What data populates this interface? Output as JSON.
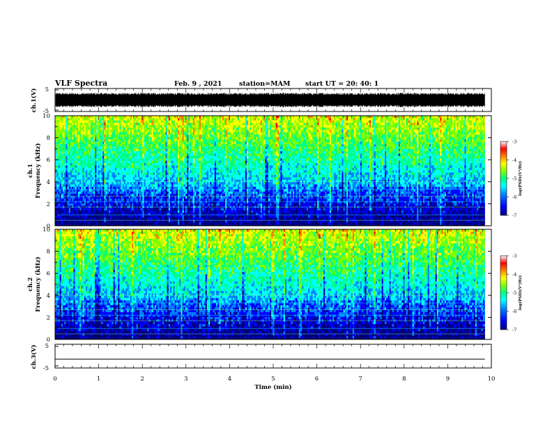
{
  "header": {
    "title": "VLF Spectra",
    "date": "Feb. 9 , 2021",
    "station": "station=MAM",
    "start": "start UT = 20: 40: 1"
  },
  "chart_data": [
    {
      "type": "line",
      "name": "ch1-waveform",
      "ylabel": "ch.1(V)",
      "ylim": [
        -5,
        5
      ],
      "ytick_labels": [
        "5",
        "-5"
      ],
      "xlim": [
        0,
        10
      ],
      "note_values": "dense oscillating waveform filling roughly -3 to 3 V across 0 to 9.85 min",
      "amplitude": 3,
      "x_end": 9.85
    },
    {
      "type": "heatmap",
      "name": "ch1-spectrogram",
      "ylabel_lines": [
        "ch.1",
        "Frequency (kHz)"
      ],
      "ylim": [
        0,
        10
      ],
      "yticks": [
        0,
        2,
        4,
        6,
        8,
        10
      ],
      "ytick_labels": [
        "0",
        "2",
        "4",
        "6",
        "8",
        "10"
      ],
      "xlim": [
        0,
        10
      ],
      "x_end": 9.85,
      "colorbar": {
        "label": "log(PSD)(V²/Hz)",
        "range": [
          -7,
          -3
        ],
        "ticks": [
          "-3",
          "-4",
          "-5",
          "-6",
          "-7"
        ]
      }
    },
    {
      "type": "heatmap",
      "name": "ch2-spectrogram",
      "ylabel_lines": [
        "ch.2",
        "Frequency (kHz)"
      ],
      "ylim": [
        0,
        10
      ],
      "yticks": [
        0,
        2,
        4,
        6,
        8,
        10
      ],
      "ytick_labels": [
        "0",
        "2",
        "4",
        "6",
        "8",
        "10"
      ],
      "xlim": [
        0,
        10
      ],
      "x_end": 9.85,
      "colorbar": {
        "label": "log(PSD)(V²/Hz)",
        "range": [
          -7,
          -3
        ],
        "ticks": [
          "-3",
          "-4",
          "-5",
          "-6",
          "-7"
        ]
      }
    },
    {
      "type": "line",
      "name": "ch3-waveform",
      "ylabel": "ch.3(V)",
      "ylim": [
        -5,
        5
      ],
      "ytick_labels": [
        "5",
        "-5"
      ],
      "xlim": [
        0,
        10
      ],
      "x": [
        0,
        9.85
      ],
      "y": [
        -1.5,
        -1.5
      ]
    }
  ],
  "xaxis": {
    "label": "Time (min)",
    "ticks": [
      0,
      1,
      2,
      3,
      4,
      5,
      6,
      7,
      8,
      9,
      10
    ],
    "tick_labels": [
      "0",
      "1",
      "2",
      "3",
      "4",
      "5",
      "6",
      "7",
      "8",
      "9",
      "10"
    ]
  },
  "colors": {
    "cmap": [
      "#000080",
      "#0000ff",
      "#0080ff",
      "#00ffff",
      "#00ff80",
      "#80ff00",
      "#ffff00",
      "#ff8000",
      "#ff0000",
      "#ffffff"
    ],
    "axis": "#000000",
    "waveform": "#000000"
  }
}
